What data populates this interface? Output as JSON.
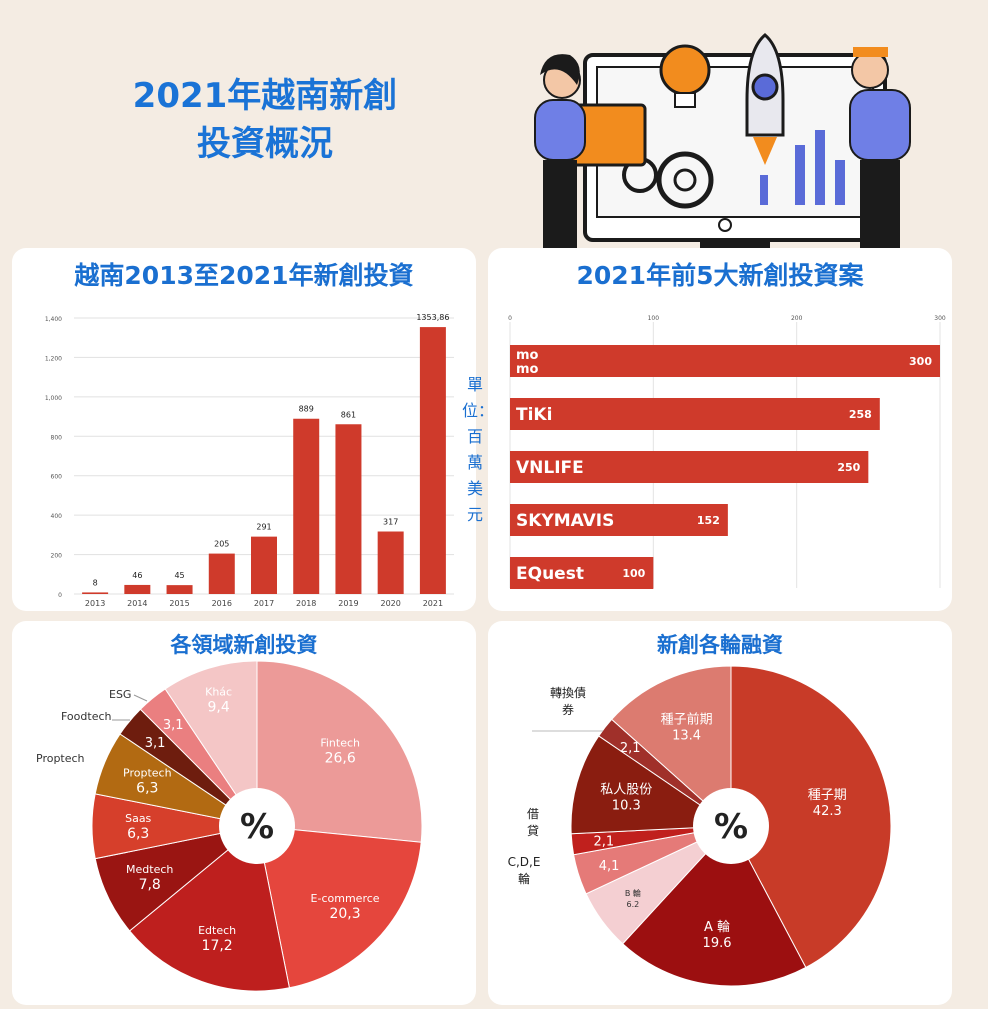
{
  "page_title_line1": "2021年越南新創",
  "page_title_line2": "投資概況",
  "unit_label": "單位：百萬美元",
  "colors": {
    "accent_blue": "#1a6fd0",
    "bar_red": "#cf3a2b",
    "background": "#f4ece3"
  },
  "chart_data": [
    {
      "type": "bar",
      "title": "越南2013至2021年新創投資",
      "categories": [
        "2013",
        "2014",
        "2015",
        "2016",
        "2017",
        "2018",
        "2019",
        "2020",
        "2021"
      ],
      "values": [
        8,
        46,
        45,
        205,
        291,
        889,
        861,
        317,
        1353.86
      ],
      "value_labels": [
        "8",
        "46",
        "45",
        "205",
        "291",
        "889",
        "861",
        "317",
        "1353,86"
      ],
      "yticks": [
        "0",
        "200",
        "400",
        "600",
        "800",
        "1,000",
        "1,200",
        "1,400"
      ],
      "ylim": [
        0,
        1400
      ],
      "grid": true
    },
    {
      "type": "bar",
      "orientation": "horizontal",
      "title": "2021年前5大新創投資案",
      "categories": [
        "MoMo",
        "TIKI",
        "VNLIFE",
        "SKY MAVIS",
        "EQUEST"
      ],
      "logo_texts": [
        "mo\nmo",
        "TiKi",
        "VNLIFE",
        "SKYMAVIS",
        "EQuest"
      ],
      "values": [
        300,
        258,
        250,
        152,
        100
      ],
      "xticks": [
        "0",
        "100",
        "200",
        "300"
      ],
      "xlim": [
        0,
        300
      ],
      "grid": true
    },
    {
      "type": "pie",
      "title": "各領域新創投資",
      "center_label": "%",
      "slices": [
        {
          "label": "Fintech",
          "value": 26.6,
          "display": "26,6",
          "color": "#ec9a98"
        },
        {
          "label": "E-commerce",
          "value": 20.3,
          "display": "20,3",
          "color": "#e5463d"
        },
        {
          "label": "Edtech",
          "value": 17.2,
          "display": "17,2",
          "color": "#be1f1e"
        },
        {
          "label": "Medtech",
          "value": 7.8,
          "display": "7,8",
          "color": "#9a1512"
        },
        {
          "label": "Saas",
          "value": 6.3,
          "display": "6,3",
          "color": "#d63f2b"
        },
        {
          "label": "Proptech",
          "value": 6.3,
          "display": "6,3",
          "color": "#b26a12"
        },
        {
          "label": "Foodtech",
          "value": 3.1,
          "display": "3,1",
          "color": "#6e1d0e"
        },
        {
          "label": "ESG",
          "value": 3.1,
          "display": "3,1",
          "color": "#ea7f80"
        },
        {
          "label": "Khác",
          "value": 9.4,
          "display": "9,4",
          "color": "#f4c6c6"
        }
      ]
    },
    {
      "type": "pie",
      "title": "新創各輪融資",
      "center_label": "%",
      "slices": [
        {
          "label": "種子期",
          "value": 42.3,
          "display": "42.3",
          "color": "#c83b28"
        },
        {
          "label": "A 輪",
          "value": 19.6,
          "display": "19.6",
          "color": "#9c0f10"
        },
        {
          "label": "B 輪",
          "value": 6.2,
          "display": "6.2",
          "color": "#f4cfd2"
        },
        {
          "label": "C,D,E 輪",
          "value": 4.1,
          "display": "4,1",
          "color": "#e57a78"
        },
        {
          "label": "借貸",
          "value": 2.1,
          "display": "2,1",
          "color": "#c0201d"
        },
        {
          "label": "私人股份",
          "value": 10.3,
          "display": "10.3",
          "color": "#8a1d10"
        },
        {
          "label": "轉換債券",
          "value": 2.1,
          "display": "2,1",
          "color": "#a0302a"
        },
        {
          "label": "種子前期",
          "value": 13.4,
          "display": "13.4",
          "color": "#dc7b70"
        }
      ]
    }
  ]
}
